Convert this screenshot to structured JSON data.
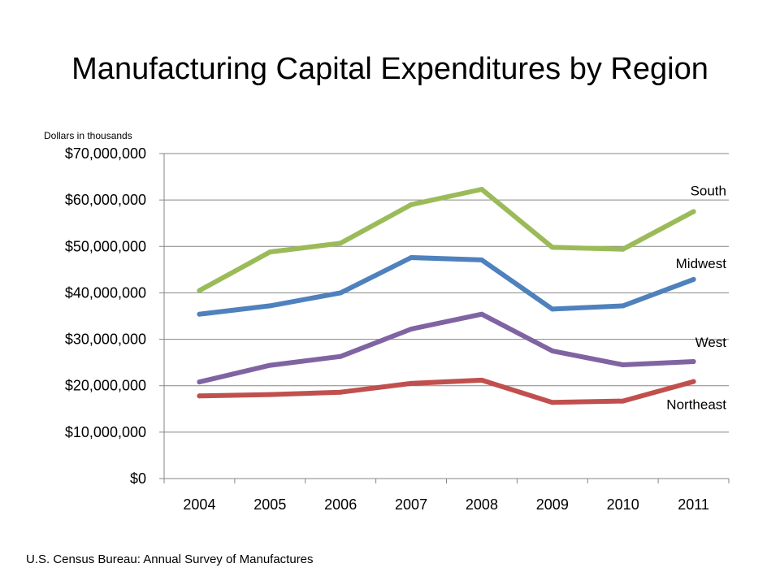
{
  "slide": {
    "title": "Manufacturing Capital Expenditures by Region",
    "units_note": "Dollars in thousands",
    "source": "U.S. Census Bureau: Annual Survey of Manufactures"
  },
  "chart_data": {
    "type": "line",
    "title": "Manufacturing Capital Expenditures by Region",
    "ylabel": "Dollars in thousands",
    "xlabel": "",
    "categories": [
      "2004",
      "2005",
      "2006",
      "2007",
      "2008",
      "2009",
      "2010",
      "2011"
    ],
    "ylim": [
      0,
      70000000
    ],
    "yticks": [
      0,
      10000000,
      20000000,
      30000000,
      40000000,
      50000000,
      60000000,
      70000000
    ],
    "ytick_labels": [
      "$0",
      "$10,000,000",
      "$20,000,000",
      "$30,000,000",
      "$40,000,000",
      "$50,000,000",
      "$60,000,000",
      "$70,000,000"
    ],
    "grid": true,
    "legend": "series labels placed at right end of lines",
    "series": [
      {
        "name": "South",
        "color": "#9BBB59",
        "values": [
          40500000,
          48800000,
          50700000,
          59000000,
          62300000,
          49800000,
          49400000,
          57500000
        ]
      },
      {
        "name": "Midwest",
        "color": "#4F81BD",
        "values": [
          35400000,
          37200000,
          40000000,
          47600000,
          47100000,
          36500000,
          37200000,
          42900000
        ]
      },
      {
        "name": "West",
        "color": "#8064A2",
        "values": [
          20800000,
          24400000,
          26300000,
          32200000,
          35400000,
          27500000,
          24500000,
          25200000
        ]
      },
      {
        "name": "Northeast",
        "color": "#C0504D",
        "values": [
          17800000,
          18100000,
          18600000,
          20500000,
          21200000,
          16400000,
          16700000,
          20900000
        ]
      }
    ]
  }
}
